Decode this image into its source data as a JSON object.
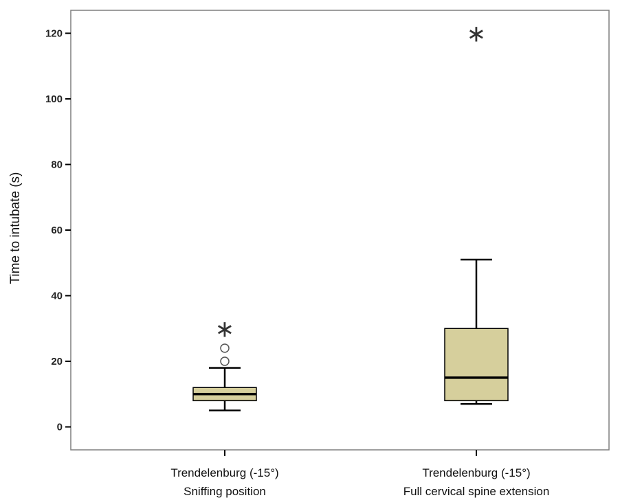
{
  "chart_data": {
    "type": "box",
    "title": "",
    "xlabel": "",
    "ylabel": "Time to intubate (s)",
    "ylim": [
      -7,
      127
    ],
    "yticks": [
      0,
      20,
      40,
      60,
      80,
      100,
      120
    ],
    "grid": false,
    "legend": "none",
    "box_color": "#d6cf9c",
    "stroke_color": "#000000",
    "categories": [
      [
        "Trendelenburg (-15°)",
        "Sniffing position"
      ],
      [
        "Trendelenburg (-15°)",
        "Full cervical spine extension"
      ]
    ],
    "series": [
      {
        "values": [
          {
            "whisker_low": 5,
            "q1": 8,
            "median": 10,
            "q3": 12,
            "whisker_high": 18,
            "outliers": [
              20,
              24
            ],
            "extremes": [
              30
            ]
          },
          {
            "whisker_low": 7,
            "q1": 8,
            "median": 15,
            "q3": 30,
            "whisker_high": 51,
            "outliers": [],
            "extremes": [
              120
            ]
          }
        ]
      }
    ]
  }
}
